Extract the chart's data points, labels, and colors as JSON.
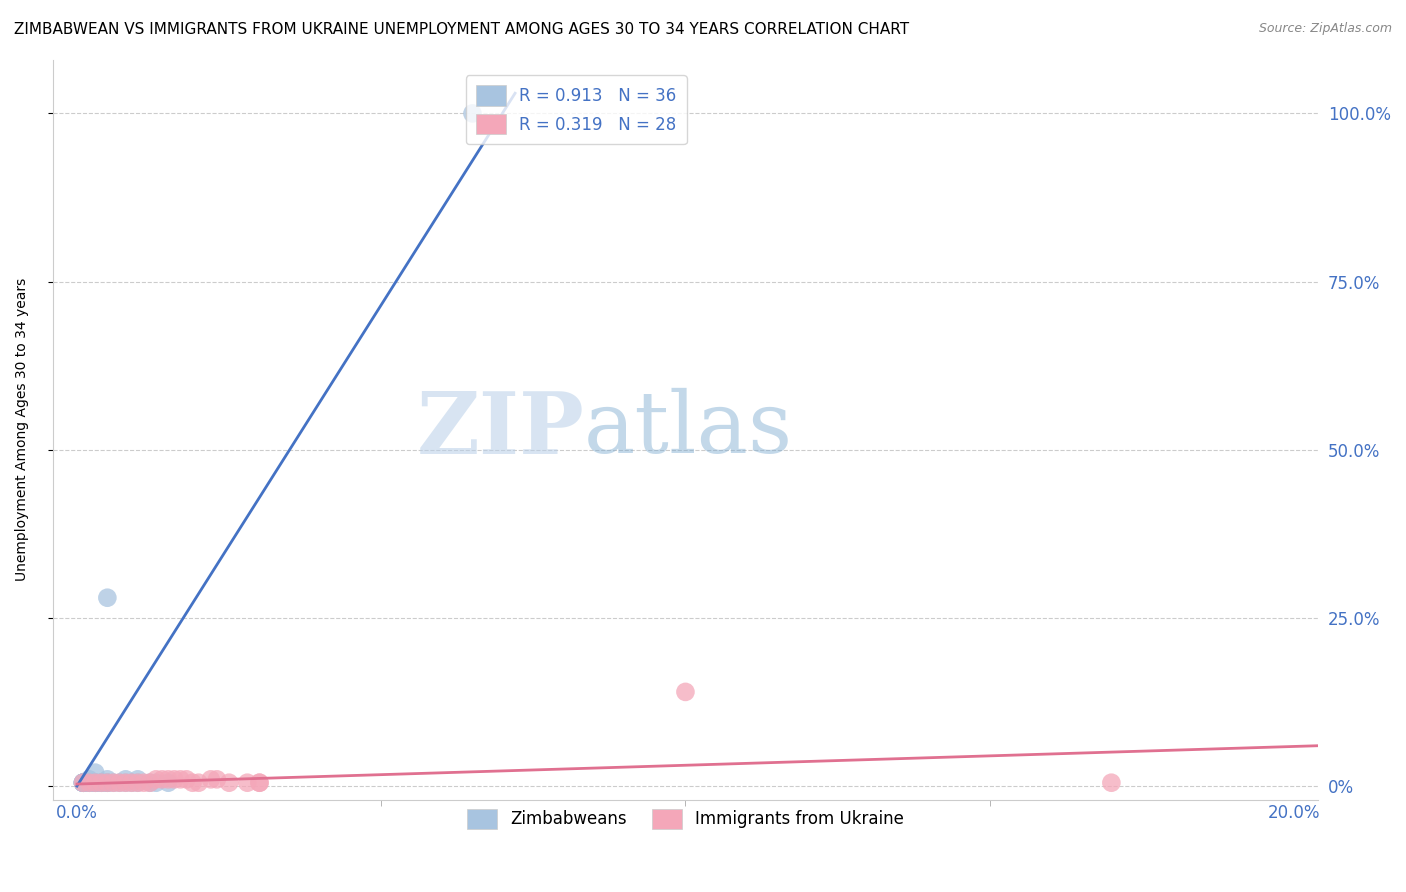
{
  "title": "ZIMBABWEAN VS IMMIGRANTS FROM UKRAINE UNEMPLOYMENT AMONG AGES 30 TO 34 YEARS CORRELATION CHART",
  "source": "Source: ZipAtlas.com",
  "ylabel": "Unemployment Among Ages 30 to 34 years",
  "blue_R": 0.913,
  "blue_N": 36,
  "pink_R": 0.319,
  "pink_N": 28,
  "blue_color": "#a8c4e0",
  "blue_line_color": "#4472c4",
  "pink_color": "#f4a7b9",
  "pink_line_color": "#e07090",
  "blue_scatter": [
    [
      0.001,
      0.005
    ],
    [
      0.001,
      0.005
    ],
    [
      0.001,
      0.005
    ],
    [
      0.001,
      0.005
    ],
    [
      0.001,
      0.005
    ],
    [
      0.001,
      0.005
    ],
    [
      0.001,
      0.005
    ],
    [
      0.001,
      0.005
    ],
    [
      0.002,
      0.005
    ],
    [
      0.002,
      0.005
    ],
    [
      0.002,
      0.005
    ],
    [
      0.002,
      0.01
    ],
    [
      0.003,
      0.005
    ],
    [
      0.003,
      0.005
    ],
    [
      0.003,
      0.005
    ],
    [
      0.003,
      0.02
    ],
    [
      0.004,
      0.005
    ],
    [
      0.004,
      0.005
    ],
    [
      0.005,
      0.005
    ],
    [
      0.005,
      0.005
    ],
    [
      0.005,
      0.005
    ],
    [
      0.005,
      0.01
    ],
    [
      0.006,
      0.005
    ],
    [
      0.007,
      0.005
    ],
    [
      0.008,
      0.005
    ],
    [
      0.008,
      0.01
    ],
    [
      0.009,
      0.005
    ],
    [
      0.01,
      0.005
    ],
    [
      0.01,
      0.01
    ],
    [
      0.012,
      0.005
    ],
    [
      0.013,
      0.005
    ],
    [
      0.015,
      0.005
    ],
    [
      0.003,
      0.005
    ],
    [
      0.004,
      0.005
    ],
    [
      0.005,
      0.28
    ],
    [
      0.065,
      1.0
    ]
  ],
  "pink_scatter": [
    [
      0.001,
      0.005
    ],
    [
      0.002,
      0.005
    ],
    [
      0.003,
      0.005
    ],
    [
      0.004,
      0.005
    ],
    [
      0.005,
      0.005
    ],
    [
      0.006,
      0.005
    ],
    [
      0.007,
      0.005
    ],
    [
      0.008,
      0.005
    ],
    [
      0.009,
      0.005
    ],
    [
      0.01,
      0.005
    ],
    [
      0.011,
      0.005
    ],
    [
      0.012,
      0.005
    ],
    [
      0.013,
      0.01
    ],
    [
      0.014,
      0.01
    ],
    [
      0.015,
      0.01
    ],
    [
      0.016,
      0.01
    ],
    [
      0.017,
      0.01
    ],
    [
      0.018,
      0.01
    ],
    [
      0.019,
      0.005
    ],
    [
      0.02,
      0.005
    ],
    [
      0.022,
      0.01
    ],
    [
      0.023,
      0.01
    ],
    [
      0.025,
      0.005
    ],
    [
      0.028,
      0.005
    ],
    [
      0.03,
      0.005
    ],
    [
      0.03,
      0.005
    ],
    [
      0.1,
      0.14
    ],
    [
      0.17,
      0.005
    ]
  ],
  "xlim": [
    -0.004,
    0.204
  ],
  "ylim": [
    -0.02,
    1.08
  ],
  "xticks": [
    0.0,
    0.2
  ],
  "yticks": [
    0.0,
    0.25,
    0.5,
    0.75,
    1.0
  ],
  "watermark_zip": "ZIP",
  "watermark_atlas": "atlas",
  "background_color": "#ffffff",
  "grid_color": "#cccccc",
  "title_fontsize": 11,
  "blue_line_x": [
    0.0,
    0.072
  ],
  "blue_line_y": [
    0.0,
    1.03
  ],
  "pink_line_x": [
    0.0,
    0.204
  ],
  "pink_line_y": [
    0.003,
    0.06
  ]
}
